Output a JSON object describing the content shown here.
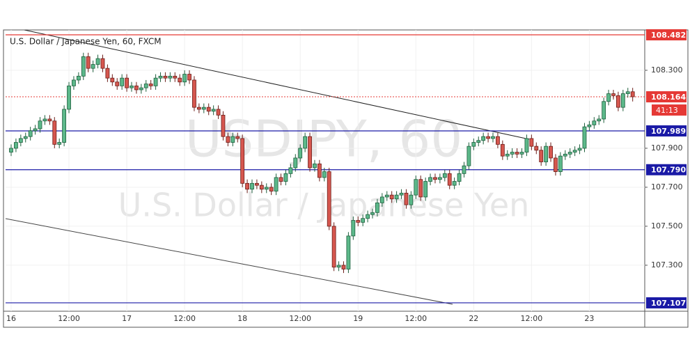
{
  "chart_data": {
    "type": "candlestick",
    "title": "U.S. Dollar / Japanese Yen, 60, FXCM",
    "watermark": [
      "USDJPY, 60",
      "U.S. Dollar / Japanese Yen"
    ],
    "categories": [
      "16",
      null,
      null,
      null,
      null,
      null,
      null,
      null,
      null,
      null,
      null,
      null,
      "12:00",
      null,
      null,
      null,
      null,
      null,
      null,
      null,
      null,
      null,
      null,
      null,
      "17",
      null,
      null,
      null,
      null,
      null,
      null,
      null,
      null,
      null,
      null,
      null,
      "12:00",
      null,
      null,
      null,
      null,
      null,
      null,
      null,
      null,
      null,
      null,
      null,
      "18",
      null,
      null,
      null,
      null,
      null,
      null,
      null,
      null,
      null,
      null,
      null,
      "12:00",
      null,
      null,
      null,
      null,
      null,
      null,
      null,
      null,
      null,
      null,
      null,
      "19",
      null,
      null,
      null,
      null,
      null,
      null,
      null,
      null,
      null,
      null,
      null,
      "12:00",
      null,
      null,
      null,
      null,
      null,
      null,
      null,
      null,
      null,
      null,
      null,
      "22",
      null,
      null,
      null,
      null,
      null,
      null,
      null,
      null,
      null,
      null,
      null,
      "12:00",
      null,
      null,
      null,
      null,
      null,
      null,
      null,
      null,
      null,
      null,
      null,
      "23",
      null,
      null,
      null,
      null,
      null,
      null,
      null,
      null,
      null
    ],
    "open": [
      107.88,
      107.9,
      107.93,
      107.95,
      107.96,
      107.99,
      108.0,
      108.04,
      108.05,
      108.04,
      107.92,
      107.93,
      108.1,
      108.22,
      108.25,
      108.27,
      108.37,
      108.31,
      108.33,
      108.36,
      108.31,
      108.26,
      108.24,
      108.22,
      108.26,
      108.21,
      108.22,
      108.2,
      108.21,
      108.23,
      108.22,
      108.26,
      108.27,
      108.26,
      108.27,
      108.26,
      108.24,
      108.28,
      108.25,
      108.11,
      108.1,
      108.11,
      108.09,
      108.1,
      108.07,
      107.96,
      107.93,
      107.96,
      107.95,
      107.72,
      107.69,
      107.72,
      107.71,
      107.69,
      107.7,
      107.68,
      107.75,
      107.73,
      107.77,
      107.8,
      107.85,
      107.9,
      107.96,
      107.8,
      107.82,
      107.75,
      107.78,
      107.5,
      107.29,
      107.3,
      107.28,
      107.45,
      107.53,
      107.52,
      107.54,
      107.56,
      107.57,
      107.62,
      107.65,
      107.66,
      107.64,
      107.66,
      107.67,
      107.61,
      107.66,
      107.74,
      107.65,
      107.73,
      107.75,
      107.74,
      107.75,
      107.77,
      107.71,
      107.73,
      107.77,
      107.81,
      107.91,
      107.93,
      107.94,
      107.96,
      107.95,
      107.96,
      107.92,
      107.86,
      107.87,
      107.88,
      107.87,
      107.88,
      107.95,
      107.91,
      107.89,
      107.83,
      107.91,
      107.85,
      107.78,
      107.86,
      107.87,
      107.88,
      107.89,
      107.9,
      108.01,
      108.02,
      108.04,
      108.05,
      108.14,
      108.18,
      108.17,
      108.11,
      108.18,
      108.19
    ],
    "high": [
      107.92,
      107.95,
      107.97,
      107.98,
      108.01,
      108.02,
      108.06,
      108.07,
      108.07,
      108.06,
      107.95,
      108.12,
      108.24,
      108.27,
      108.29,
      108.39,
      108.39,
      108.35,
      108.38,
      108.38,
      108.33,
      108.28,
      108.26,
      108.28,
      108.28,
      108.24,
      108.24,
      108.23,
      108.25,
      108.25,
      108.28,
      108.29,
      108.29,
      108.29,
      108.29,
      108.28,
      108.3,
      108.3,
      108.27,
      108.13,
      108.13,
      108.13,
      108.12,
      108.12,
      108.09,
      107.98,
      107.98,
      107.98,
      107.97,
      107.74,
      107.74,
      107.74,
      107.73,
      107.72,
      107.72,
      107.77,
      107.77,
      107.79,
      107.82,
      107.87,
      107.92,
      107.98,
      107.98,
      107.84,
      107.84,
      107.8,
      107.8,
      107.52,
      107.32,
      107.32,
      107.47,
      107.55,
      107.55,
      107.56,
      107.58,
      107.59,
      107.64,
      107.67,
      107.68,
      107.68,
      107.68,
      107.69,
      107.69,
      107.68,
      107.76,
      107.76,
      107.75,
      107.77,
      107.77,
      107.77,
      107.79,
      107.79,
      107.75,
      107.79,
      107.83,
      107.93,
      107.95,
      107.96,
      107.98,
      107.98,
      107.98,
      107.98,
      107.94,
      107.89,
      107.9,
      107.9,
      107.9,
      107.97,
      107.97,
      107.93,
      107.91,
      107.93,
      107.93,
      107.87,
      107.88,
      107.89,
      107.9,
      107.91,
      107.92,
      108.03,
      108.04,
      108.06,
      108.07,
      108.16,
      108.2,
      108.2,
      108.19,
      108.2,
      108.21,
      108.21
    ],
    "low": [
      107.86,
      107.88,
      107.91,
      107.93,
      107.94,
      107.97,
      107.98,
      108.02,
      108.02,
      107.9,
      107.9,
      107.91,
      108.08,
      108.2,
      108.23,
      108.25,
      108.29,
      108.29,
      108.31,
      108.29,
      108.24,
      108.22,
      108.2,
      108.2,
      108.19,
      108.19,
      108.18,
      108.18,
      108.19,
      108.2,
      108.2,
      108.24,
      108.24,
      108.24,
      108.24,
      108.22,
      108.22,
      108.23,
      108.09,
      108.08,
      108.08,
      108.07,
      108.07,
      108.05,
      107.94,
      107.91,
      107.91,
      107.93,
      107.7,
      107.67,
      107.67,
      107.69,
      107.67,
      107.67,
      107.66,
      107.66,
      107.71,
      107.71,
      107.75,
      107.78,
      107.83,
      107.88,
      107.78,
      107.78,
      107.73,
      107.73,
      107.48,
      107.27,
      107.27,
      107.26,
      107.26,
      107.43,
      107.5,
      107.5,
      107.52,
      107.54,
      107.55,
      107.6,
      107.63,
      107.62,
      107.62,
      107.64,
      107.59,
      107.59,
      107.64,
      107.63,
      107.63,
      107.71,
      107.72,
      107.72,
      107.73,
      107.69,
      107.69,
      107.71,
      107.75,
      107.79,
      107.89,
      107.91,
      107.92,
      107.93,
      107.93,
      107.9,
      107.84,
      107.84,
      107.85,
      107.85,
      107.85,
      107.86,
      107.89,
      107.87,
      107.81,
      107.81,
      107.83,
      107.76,
      107.76,
      107.84,
      107.85,
      107.86,
      107.87,
      107.88,
      107.99,
      108.0,
      108.02,
      108.03,
      108.12,
      108.15,
      108.09,
      108.09,
      108.16,
      108.14
    ],
    "close": [
      107.9,
      107.93,
      107.95,
      107.96,
      107.99,
      108.0,
      108.04,
      108.05,
      108.04,
      107.92,
      107.93,
      108.1,
      108.22,
      108.25,
      108.27,
      108.37,
      108.31,
      108.33,
      108.36,
      108.31,
      108.26,
      108.24,
      108.22,
      108.26,
      108.21,
      108.22,
      108.2,
      108.21,
      108.23,
      108.22,
      108.26,
      108.27,
      108.26,
      108.27,
      108.26,
      108.24,
      108.28,
      108.25,
      108.11,
      108.1,
      108.11,
      108.09,
      108.1,
      108.07,
      107.96,
      107.93,
      107.96,
      107.95,
      107.72,
      107.69,
      107.72,
      107.71,
      107.69,
      107.7,
      107.68,
      107.75,
      107.73,
      107.77,
      107.8,
      107.85,
      107.9,
      107.96,
      107.8,
      107.82,
      107.75,
      107.78,
      107.5,
      107.29,
      107.3,
      107.28,
      107.45,
      107.53,
      107.52,
      107.54,
      107.56,
      107.57,
      107.62,
      107.65,
      107.66,
      107.64,
      107.66,
      107.67,
      107.61,
      107.66,
      107.74,
      107.65,
      107.73,
      107.75,
      107.74,
      107.75,
      107.77,
      107.71,
      107.73,
      107.77,
      107.81,
      107.91,
      107.93,
      107.94,
      107.96,
      107.95,
      107.96,
      107.92,
      107.86,
      107.87,
      107.88,
      107.87,
      107.88,
      107.95,
      107.91,
      107.89,
      107.83,
      107.91,
      107.85,
      107.78,
      107.86,
      107.87,
      107.88,
      107.89,
      107.9,
      108.01,
      108.02,
      108.04,
      108.05,
      108.14,
      108.18,
      108.17,
      108.11,
      108.18,
      108.19,
      108.164
    ],
    "up_color": "#5cb88a",
    "up_border": "#1d5e3c",
    "down_color": "#d6574f",
    "down_border": "#6b1c17",
    "ylim": [
      107.064,
      108.507
    ],
    "yticks": [
      {
        "value": 107.3,
        "label": "107.300"
      },
      {
        "value": 107.5,
        "label": "107.500"
      },
      {
        "value": 107.7,
        "label": "107.700"
      },
      {
        "value": 107.9,
        "label": "107.900"
      },
      {
        "value": 108.3,
        "label": "108.300"
      }
    ],
    "grid": true,
    "levels": [
      {
        "value": 108.482,
        "label": "108.482",
        "color": "#e53935",
        "style": "solid"
      },
      {
        "value": 108.164,
        "label": "108.164",
        "color": "#e53935",
        "style": "dotted"
      },
      {
        "value": 107.989,
        "label": "107.989",
        "color": "#1a1aa6",
        "style": "solid"
      },
      {
        "value": 107.79,
        "label": "107.790",
        "color": "#1a1aa6",
        "style": "solid"
      },
      {
        "value": 107.107,
        "label": "107.107",
        "color": "#1a1aa6",
        "style": "solid"
      }
    ],
    "countdown": "41:13"
  }
}
